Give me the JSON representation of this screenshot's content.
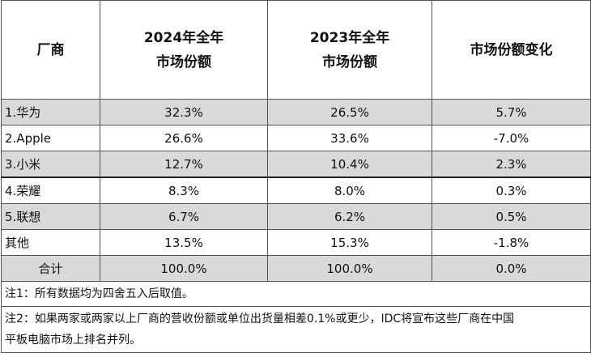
{
  "table": {
    "header": [
      [
        "厂商"
      ],
      [
        "2024年全年",
        "市场份额"
      ],
      [
        "2023年全年",
        "市场份额"
      ],
      [
        "市场份额变化"
      ]
    ],
    "rows": [
      [
        "1.华为",
        "32.3%",
        "26.5%",
        "5.7%"
      ],
      [
        "2.Apple",
        "26.6%",
        "33.6%",
        "-7.0%"
      ],
      [
        "3.小米",
        "12.7%",
        "10.4%",
        "2.3%"
      ],
      [
        "4.荣耀",
        "8.3%",
        "8.0%",
        "0.3%"
      ],
      [
        "5.联想",
        "6.7%",
        "6.2%",
        "0.5%"
      ],
      [
        "其他",
        "13.5%",
        "15.3%",
        "-1.8%"
      ],
      [
        "合计",
        "100.0%",
        "100.0%",
        "0.0%"
      ]
    ],
    "notes": [
      [
        "注1：所有数据均为四舍五入后取值。"
      ],
      [
        "注2：如果两家或两家以上厂商的营收份额或单位出货量相差0.1%或更少，IDC将宣布这些厂商在中国",
        "平板电脑市场上排名并列。"
      ]
    ]
  }
}
